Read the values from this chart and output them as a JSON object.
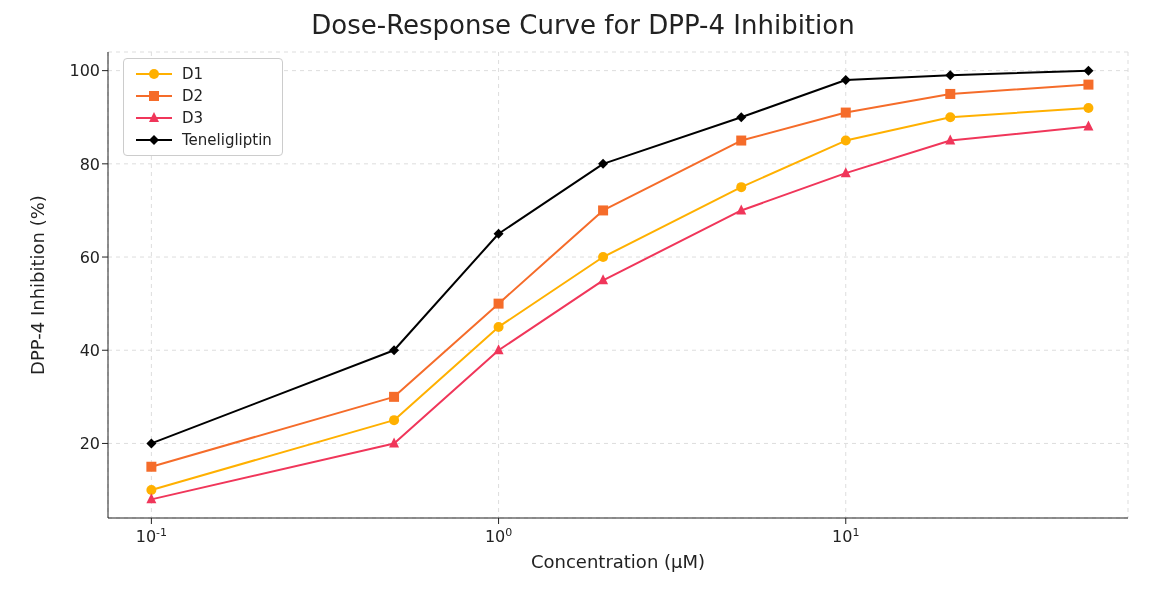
{
  "chart_data": {
    "type": "line",
    "title": "Dose-Response Curve for DPP-4 Inhibition",
    "xlabel": "Concentration (μM)",
    "ylabel": "DPP-4 Inhibition (%)",
    "x": [
      0.1,
      0.5,
      1,
      2,
      5,
      10,
      20,
      50
    ],
    "series": [
      {
        "name": "D1",
        "color": "#ffb000",
        "marker": "circle",
        "values": [
          10,
          25,
          45,
          60,
          75,
          85,
          90,
          92
        ]
      },
      {
        "name": "D2",
        "color": "#f56c2a",
        "marker": "square",
        "values": [
          15,
          30,
          50,
          70,
          85,
          91,
          95,
          97
        ]
      },
      {
        "name": "D3",
        "color": "#f0365a",
        "marker": "triangle",
        "values": [
          8,
          20,
          40,
          55,
          70,
          78,
          85,
          88
        ]
      },
      {
        "name": "Teneligliptin",
        "color": "#000000",
        "marker": "diamond",
        "values": [
          20,
          40,
          65,
          80,
          90,
          98,
          99,
          100
        ]
      }
    ],
    "log": "x",
    "xlim": [
      0.075,
      65
    ],
    "xticks": [
      {
        "value": 0.1,
        "label": "10$^{-1}$"
      },
      {
        "value": 1,
        "label": "10$^{0}$"
      },
      {
        "value": 10,
        "label": "10$^{1}$"
      }
    ],
    "ylim": [
      4,
      104
    ],
    "yticks": [
      20,
      40,
      60,
      80,
      100
    ],
    "grid": true,
    "legend": "top left",
    "line_style": "solid"
  }
}
